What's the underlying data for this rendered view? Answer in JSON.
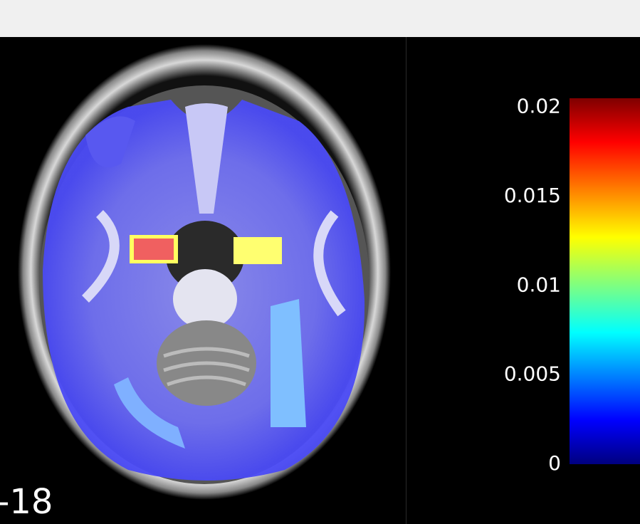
{
  "slice_label": "-18",
  "colorbar": {
    "lim": [
      0,
      0.0205
    ],
    "ticks": [
      0,
      0.005,
      0.01,
      0.015,
      0.02
    ],
    "colormap": "jet"
  }
}
